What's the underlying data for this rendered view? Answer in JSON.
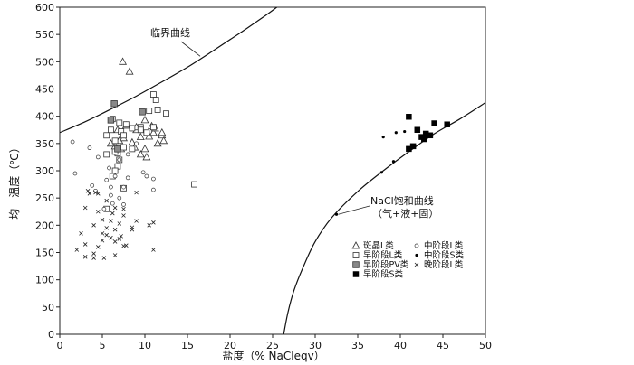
{
  "chart_data": {
    "type": "scatter",
    "xlabel": "盐度（% NaCleqv）",
    "ylabel": "均一温度（℃）",
    "xlim": [
      0,
      50
    ],
    "ylim": [
      0,
      600
    ],
    "xticks": [
      0,
      5,
      10,
      15,
      20,
      25,
      30,
      35,
      40,
      45,
      50
    ],
    "yticks": [
      0,
      50,
      100,
      150,
      200,
      250,
      300,
      350,
      400,
      450,
      500,
      550,
      600
    ],
    "grid": false,
    "legend_position": "lower-right",
    "curves": [
      {
        "label": "临界曲线",
        "points": [
          [
            0,
            370
          ],
          [
            3,
            390
          ],
          [
            6,
            413
          ],
          [
            9,
            437
          ],
          [
            12,
            463
          ],
          [
            15,
            490
          ],
          [
            18,
            520
          ],
          [
            21,
            551
          ],
          [
            24,
            583
          ],
          [
            25.5,
            600
          ]
        ]
      },
      {
        "label": "NaCl饱和曲线",
        "sublabel": "（气+液+固）",
        "points": [
          [
            26.3,
            0
          ],
          [
            26.8,
            40
          ],
          [
            27.5,
            80
          ],
          [
            28.5,
            120
          ],
          [
            30,
            170
          ],
          [
            32,
            215
          ],
          [
            35,
            262
          ],
          [
            38,
            300
          ],
          [
            41,
            335
          ],
          [
            44,
            368
          ],
          [
            47,
            395
          ],
          [
            50,
            425
          ]
        ]
      }
    ],
    "annotations": [
      {
        "text": "临界曲线",
        "position": "upper-left",
        "arrow_to": [
          16.5,
          510
        ]
      },
      {
        "text": "NaCl饱和曲线",
        "text2": "（气+液+固）",
        "position": "center",
        "arrow_to": [
          32.5,
          220
        ]
      }
    ],
    "series": [
      {
        "name": "斑晶L类",
        "marker": "triangle",
        "points": [
          [
            7.4,
            500
          ],
          [
            8.2,
            482
          ],
          [
            6.8,
            375
          ],
          [
            9,
            375
          ],
          [
            10.8,
            382
          ],
          [
            11,
            370
          ],
          [
            9.5,
            362
          ],
          [
            10.5,
            363
          ],
          [
            12,
            365
          ],
          [
            12.2,
            355
          ],
          [
            7,
            355
          ],
          [
            8.5,
            352
          ],
          [
            6.5,
            345
          ],
          [
            7.2,
            340
          ],
          [
            10,
            340
          ],
          [
            11.5,
            350
          ],
          [
            8.8,
            343
          ],
          [
            9.5,
            330
          ],
          [
            10.2,
            325
          ],
          [
            6,
            350
          ],
          [
            7.5,
            360
          ],
          [
            9,
            380
          ],
          [
            10,
            393
          ],
          [
            7.8,
            383
          ],
          [
            11.2,
            378
          ],
          [
            12,
            370
          ]
        ]
      },
      {
        "name": "早阶段L类",
        "marker": "square-open",
        "points": [
          [
            11,
            440
          ],
          [
            11.3,
            430
          ],
          [
            10.5,
            410
          ],
          [
            11.5,
            412
          ],
          [
            12.5,
            405
          ],
          [
            6.2,
            395
          ],
          [
            7,
            388
          ],
          [
            7.8,
            385
          ],
          [
            8.5,
            378
          ],
          [
            9.5,
            380
          ],
          [
            10.2,
            370
          ],
          [
            11,
            380
          ],
          [
            6,
            375
          ],
          [
            7.2,
            372
          ],
          [
            7.5,
            365
          ],
          [
            5.5,
            365
          ],
          [
            6.5,
            355
          ],
          [
            7.5,
            343
          ],
          [
            8.5,
            340
          ],
          [
            6.8,
            332
          ],
          [
            5.5,
            330
          ],
          [
            7,
            320
          ],
          [
            6.8,
            308
          ],
          [
            6.5,
            300
          ],
          [
            6.2,
            290
          ],
          [
            15.8,
            275
          ],
          [
            7.5,
            268
          ],
          [
            5.5,
            230
          ],
          [
            6.5,
            335
          ],
          [
            9.5,
            375
          ]
        ]
      },
      {
        "name": "早阶段PV类",
        "marker": "square-gray",
        "points": [
          [
            6.4,
            423
          ],
          [
            6,
            393
          ],
          [
            9.7,
            408
          ],
          [
            6.8,
            340
          ]
        ]
      },
      {
        "name": "早阶段S类",
        "marker": "square-filled",
        "points": [
          [
            41,
            399
          ],
          [
            44,
            387
          ],
          [
            45.5,
            385
          ],
          [
            42,
            375
          ],
          [
            43,
            368
          ],
          [
            42.5,
            362
          ],
          [
            42.8,
            358
          ],
          [
            41.5,
            345
          ],
          [
            41,
            340
          ],
          [
            43.5,
            365
          ]
        ]
      },
      {
        "name": "中阶段L类",
        "marker": "circle-open",
        "points": [
          [
            1.5,
            353
          ],
          [
            3.5,
            342
          ],
          [
            1.8,
            295
          ],
          [
            3.8,
            273
          ],
          [
            5.5,
            283
          ],
          [
            6.5,
            290
          ],
          [
            8,
            287
          ],
          [
            9.8,
            297
          ],
          [
            10.2,
            290
          ],
          [
            11,
            285
          ],
          [
            11,
            265
          ],
          [
            4.2,
            263
          ],
          [
            7.5,
            270
          ],
          [
            6,
            255
          ],
          [
            7,
            250
          ],
          [
            6.2,
            240
          ],
          [
            7.5,
            238
          ],
          [
            5.2,
            230
          ],
          [
            8,
            330
          ],
          [
            9,
            350
          ],
          [
            7,
            320
          ],
          [
            6,
            270
          ],
          [
            5.8,
            305
          ],
          [
            4.5,
            325
          ]
        ]
      },
      {
        "name": "中阶段S类",
        "marker": "dot",
        "points": [
          [
            38,
            362
          ],
          [
            40.5,
            372
          ],
          [
            39.5,
            370
          ],
          [
            37.8,
            297
          ],
          [
            39.2,
            317
          ],
          [
            32.5,
            220
          ]
        ]
      },
      {
        "name": "晚阶段L类",
        "marker": "x",
        "points": [
          [
            3.3,
            263
          ],
          [
            3.5,
            258
          ],
          [
            4.5,
            258
          ],
          [
            4.2,
            260
          ],
          [
            9,
            260
          ],
          [
            5.5,
            245
          ],
          [
            3,
            232
          ],
          [
            6.5,
            232
          ],
          [
            7.5,
            230
          ],
          [
            4.5,
            225
          ],
          [
            6.2,
            222
          ],
          [
            7.5,
            218
          ],
          [
            5,
            210
          ],
          [
            6,
            208
          ],
          [
            7,
            203
          ],
          [
            9,
            208
          ],
          [
            11,
            205
          ],
          [
            10.5,
            200
          ],
          [
            4,
            200
          ],
          [
            5.5,
            195
          ],
          [
            6.5,
            192
          ],
          [
            8.5,
            192
          ],
          [
            2.5,
            185
          ],
          [
            5.5,
            182
          ],
          [
            6,
            177
          ],
          [
            7,
            175
          ],
          [
            5,
            172
          ],
          [
            6.5,
            170
          ],
          [
            3,
            165
          ],
          [
            7.5,
            162
          ],
          [
            7.8,
            163
          ],
          [
            4.5,
            160
          ],
          [
            2,
            155
          ],
          [
            11,
            155
          ],
          [
            4,
            148
          ],
          [
            3,
            142
          ],
          [
            4,
            140
          ],
          [
            5.2,
            140
          ],
          [
            6.5,
            145
          ],
          [
            8.5,
            196
          ],
          [
            5,
            185
          ],
          [
            7.2,
            180
          ]
        ]
      }
    ]
  }
}
